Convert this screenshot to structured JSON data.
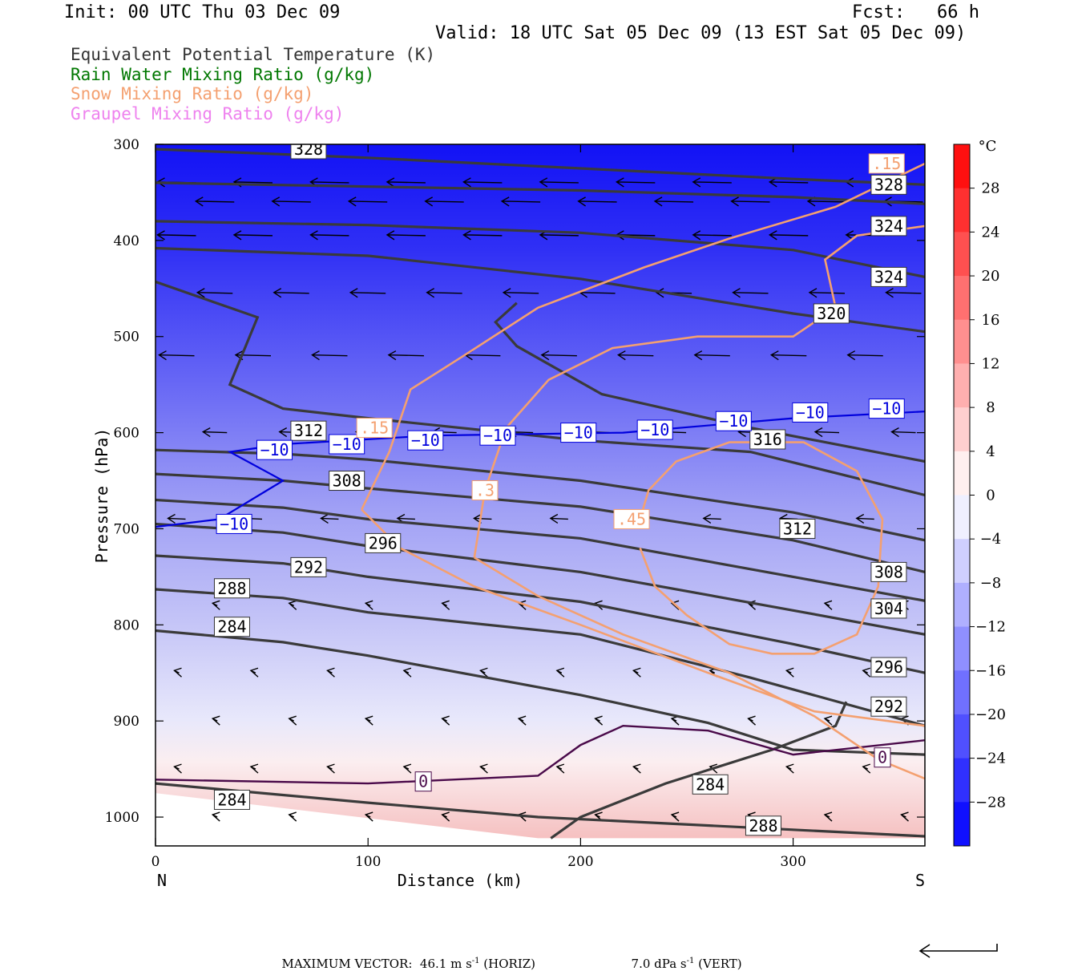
{
  "header": {
    "init": "Init: 00 UTC Thu 03 Dec 09",
    "fcst": "Fcst:   66 h",
    "valid": "Valid: 18 UTC Sat 05 Dec 09 (13 EST Sat 05 Dec 09)"
  },
  "legend": [
    {
      "label": "Equivalent Potential Temperature (K)",
      "color": "#333333"
    },
    {
      "label": "Rain Water Mixing Ratio (g/kg)",
      "color": "#007700"
    },
    {
      "label": "Snow Mixing Ratio (g/kg)",
      "color": "#f4a070"
    },
    {
      "label": "Graupel Mixing Ratio (g/kg)",
      "color": "#ee82ee"
    }
  ],
  "footer": {
    "max_vector": "MAXIMUM VECTOR:  46.1 m s",
    "horiz": " (HORIZ)",
    "vert_value": "7.0 dPa s",
    "vert": " (VERT)",
    "exp": "-1"
  },
  "chart_data": {
    "type": "cross-section",
    "xlabel": "Distance (km)",
    "ylabel": "Pressure (hPa)",
    "xlim": [
      0,
      362
    ],
    "ylim": [
      1030,
      300
    ],
    "x_ticks": [
      0,
      100,
      200,
      300
    ],
    "y_ticks": [
      300,
      400,
      500,
      600,
      700,
      800,
      900,
      1000
    ],
    "x_end_labels": {
      "left": "N",
      "right": "S"
    },
    "colorbar": {
      "unit": "°C",
      "tick_labels": [
        "28",
        "24",
        "20",
        "16",
        "12",
        "8",
        "4",
        "0",
        "−4",
        "−8",
        "−12",
        "−16",
        "−20",
        "−24",
        "−28"
      ],
      "tick_values": [
        28,
        24,
        20,
        16,
        12,
        8,
        4,
        0,
        -4,
        -8,
        -12,
        -16,
        -20,
        -24,
        -28
      ],
      "range": [
        -32,
        32
      ],
      "cold_color": "#0000ff",
      "warm_color": "#ff0000"
    },
    "theta_e_contours": [
      {
        "label": "328",
        "points": [
          [
            0,
            305
          ],
          [
            100,
            314
          ],
          [
            200,
            325
          ],
          [
            300,
            336
          ],
          [
            362,
            342
          ]
        ]
      },
      {
        "label": "328",
        "points": [
          [
            0,
            340
          ],
          [
            100,
            344
          ],
          [
            200,
            348
          ],
          [
            300,
            355
          ],
          [
            362,
            362
          ]
        ]
      },
      {
        "label": "324",
        "points": [
          [
            0,
            380
          ],
          [
            100,
            384
          ],
          [
            200,
            392
          ],
          [
            300,
            410
          ],
          [
            362,
            438
          ]
        ]
      },
      {
        "label": "320",
        "points": [
          [
            0,
            408
          ],
          [
            100,
            416
          ],
          [
            200,
            440
          ],
          [
            300,
            476
          ],
          [
            362,
            495
          ]
        ]
      },
      {
        "label": "316",
        "points": [
          [
            0,
            443
          ],
          [
            35,
            470
          ],
          [
            48,
            480
          ],
          [
            35,
            550
          ],
          [
            60,
            575
          ],
          [
            100,
            585
          ],
          [
            200,
            608
          ],
          [
            280,
            620
          ],
          [
            362,
            665
          ]
        ]
      },
      {
        "label": "316",
        "points": [
          [
            170,
            465
          ],
          [
            160,
            485
          ],
          [
            170,
            510
          ],
          [
            210,
            560
          ],
          [
            280,
            595
          ],
          [
            362,
            630
          ]
        ]
      },
      {
        "label": "312",
        "points": [
          [
            0,
            618
          ],
          [
            60,
            622
          ],
          [
            100,
            628
          ],
          [
            200,
            650
          ],
          [
            300,
            683
          ],
          [
            362,
            712
          ]
        ]
      },
      {
        "label": "308",
        "points": [
          [
            0,
            643
          ],
          [
            60,
            650
          ],
          [
            100,
            658
          ],
          [
            200,
            677
          ],
          [
            300,
            712
          ],
          [
            362,
            745
          ]
        ]
      },
      {
        "label": "304",
        "points": [
          [
            0,
            670
          ],
          [
            60,
            678
          ],
          [
            100,
            690
          ],
          [
            200,
            710
          ],
          [
            300,
            750
          ],
          [
            362,
            775
          ]
        ]
      },
      {
        "label": "296",
        "points": [
          [
            0,
            695
          ],
          [
            60,
            704
          ],
          [
            100,
            718
          ],
          [
            200,
            745
          ],
          [
            300,
            785
          ],
          [
            362,
            810
          ]
        ]
      },
      {
        "label": "292",
        "points": [
          [
            0,
            728
          ],
          [
            60,
            736
          ],
          [
            100,
            750
          ],
          [
            200,
            776
          ],
          [
            300,
            820
          ],
          [
            362,
            850
          ]
        ]
      },
      {
        "label": "288",
        "points": [
          [
            0,
            763
          ],
          [
            60,
            772
          ],
          [
            100,
            787
          ],
          [
            200,
            810
          ],
          [
            280,
            855
          ],
          [
            362,
            905
          ]
        ]
      },
      {
        "label": "284",
        "points": [
          [
            0,
            806
          ],
          [
            60,
            818
          ],
          [
            100,
            832
          ],
          [
            200,
            873
          ],
          [
            260,
            902
          ],
          [
            300,
            930
          ],
          [
            362,
            935
          ]
        ]
      },
      {
        "label": "284",
        "points": [
          [
            0,
            965
          ],
          [
            50,
            975
          ],
          [
            100,
            985
          ],
          [
            180,
            1000
          ],
          [
            362,
            1020
          ]
        ]
      },
      {
        "label": "288",
        "points": [
          [
            186,
            1022
          ],
          [
            200,
            1000
          ],
          [
            240,
            965
          ],
          [
            290,
            930
          ],
          [
            320,
            905
          ],
          [
            325,
            880
          ]
        ]
      }
    ],
    "freezing_contour": {
      "label": "0",
      "points": [
        [
          0,
          961
        ],
        [
          100,
          965
        ],
        [
          180,
          957
        ],
        [
          200,
          925
        ],
        [
          220,
          905
        ],
        [
          260,
          910
        ],
        [
          300,
          935
        ],
        [
          362,
          920
        ]
      ]
    },
    "minus10_contour": {
      "label": "−10",
      "points": [
        [
          0,
          698
        ],
        [
          30,
          690
        ],
        [
          45,
          670
        ],
        [
          60,
          650
        ],
        [
          35,
          620
        ],
        [
          60,
          612
        ],
        [
          130,
          603
        ],
        [
          220,
          600
        ],
        [
          300,
          585
        ],
        [
          362,
          578
        ]
      ]
    },
    "snow_contours": [
      {
        "label": ".15",
        "points": [
          [
            97,
            680
          ],
          [
            110,
            620
          ],
          [
            120,
            555
          ],
          [
            145,
            520
          ],
          [
            180,
            470
          ],
          [
            230,
            428
          ],
          [
            270,
            398
          ],
          [
            320,
            365
          ],
          [
            362,
            320
          ]
        ]
      },
      {
        "label": ".15",
        "points": [
          [
            97,
            680
          ],
          [
            115,
            720
          ],
          [
            150,
            760
          ],
          [
            200,
            800
          ],
          [
            260,
            850
          ],
          [
            310,
            890
          ],
          [
            362,
            905
          ]
        ]
      },
      {
        "label": ".3",
        "points": [
          [
            150,
            730
          ],
          [
            155,
            660
          ],
          [
            165,
            595
          ],
          [
            185,
            545
          ],
          [
            215,
            512
          ],
          [
            255,
            500
          ],
          [
            300,
            500
          ],
          [
            320,
            470
          ],
          [
            315,
            420
          ],
          [
            330,
            395
          ],
          [
            362,
            385
          ]
        ]
      },
      {
        "label": ".3",
        "points": [
          [
            150,
            730
          ],
          [
            180,
            770
          ],
          [
            220,
            810
          ],
          [
            270,
            850
          ],
          [
            310,
            895
          ],
          [
            340,
            940
          ],
          [
            362,
            960
          ]
        ]
      },
      {
        "label": ".45",
        "points": [
          [
            228,
            690
          ],
          [
            232,
            660
          ],
          [
            245,
            630
          ],
          [
            270,
            610
          ],
          [
            305,
            610
          ],
          [
            330,
            640
          ],
          [
            342,
            690
          ],
          [
            340,
            760
          ],
          [
            330,
            810
          ],
          [
            310,
            830
          ],
          [
            290,
            830
          ],
          [
            270,
            820
          ],
          [
            250,
            790
          ],
          [
            235,
            760
          ],
          [
            228,
            720
          ]
        ]
      }
    ],
    "wind_field": "horizontal wind vectors plotted across the section, strongest aloft"
  }
}
